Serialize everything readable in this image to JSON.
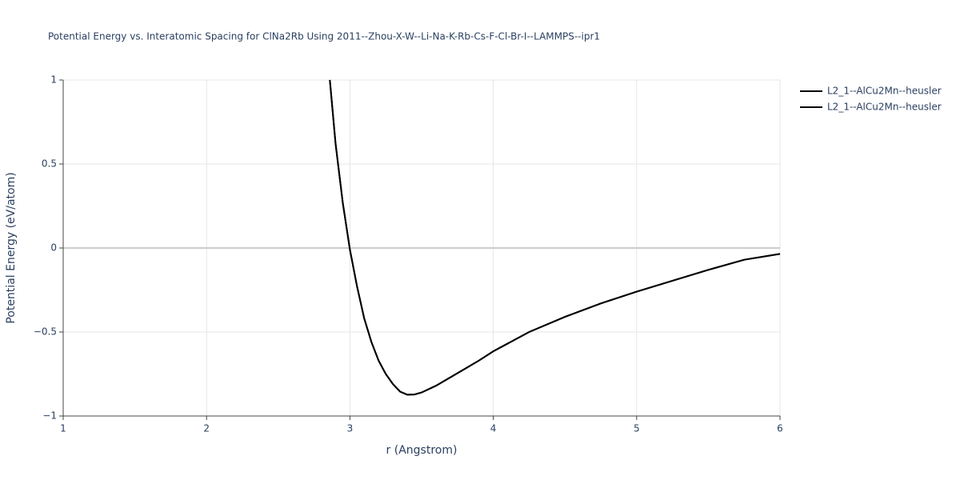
{
  "chart_data": {
    "type": "line",
    "title": "Potential Energy vs. Interatomic Spacing for ClNa2Rb Using 2011--Zhou-X-W--Li-Na-K-Rb-Cs-F-Cl-Br-I--LAMMPS--ipr1",
    "x_label": "r (Angstrom)",
    "y_label": "Potential Energy (eV/atom)",
    "x": [
      2.86,
      2.9,
      2.95,
      3.0,
      3.05,
      3.1,
      3.15,
      3.2,
      3.25,
      3.3,
      3.35,
      3.4,
      3.45,
      3.5,
      3.6,
      3.7,
      3.8,
      3.9,
      4.0,
      4.25,
      4.5,
      4.75,
      5.0,
      5.25,
      5.5,
      5.75,
      6.0
    ],
    "series": [
      {
        "name": "L2_1--AlCu2Mn--heusler",
        "color": "#000000",
        "values": [
          1.0,
          0.62,
          0.27,
          -0.01,
          -0.23,
          -0.42,
          -0.56,
          -0.67,
          -0.75,
          -0.81,
          -0.855,
          -0.873,
          -0.872,
          -0.86,
          -0.82,
          -0.77,
          -0.72,
          -0.67,
          -0.615,
          -0.5,
          -0.41,
          -0.33,
          -0.26,
          -0.195,
          -0.13,
          -0.07,
          -0.035
        ]
      },
      {
        "name": "L2_1--AlCu2Mn--heusler",
        "color": "#000000",
        "values": [
          1.0,
          0.62,
          0.27,
          -0.01,
          -0.23,
          -0.42,
          -0.56,
          -0.67,
          -0.75,
          -0.81,
          -0.855,
          -0.873,
          -0.872,
          -0.86,
          -0.82,
          -0.77,
          -0.72,
          -0.67,
          -0.615,
          -0.5,
          -0.41,
          -0.33,
          -0.26,
          -0.195,
          -0.13,
          -0.07,
          -0.035
        ]
      }
    ],
    "xlim": [
      1,
      6
    ],
    "xticks": [
      1,
      2,
      3,
      4,
      5,
      6
    ],
    "ylim": [
      -1,
      1
    ],
    "yticks": [
      {
        "value": -1,
        "label": "−1"
      },
      {
        "value": -0.5,
        "label": "−0.5"
      },
      0,
      0.5,
      1
    ],
    "grid": true,
    "legend": "top-right"
  }
}
